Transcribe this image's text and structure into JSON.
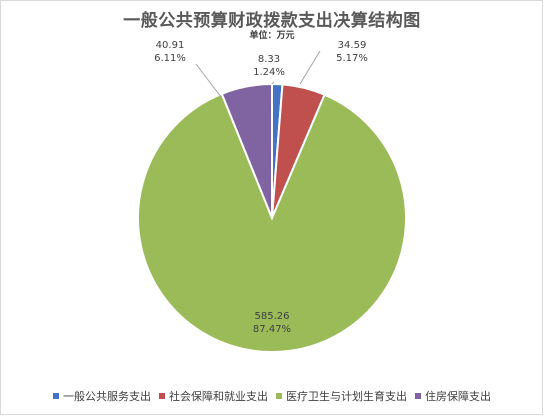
{
  "chart_data": {
    "type": "pie",
    "title": "一般公共预算财政拨款支出决算结构图",
    "subtitle": "单位：万元",
    "slices": [
      {
        "name": "一般公共服务支出",
        "value": 8.33,
        "percent": "1.24%",
        "value_label": "8.33",
        "color": "#4472C4"
      },
      {
        "name": "社会保障和就业支出",
        "value": 34.59,
        "percent": "5.17%",
        "value_label": "34.59",
        "color": "#C0504D"
      },
      {
        "name": "医疗卫生与计划生育支出",
        "value": 585.26,
        "percent": "87.47%",
        "value_label": "585.26",
        "color": "#9BBB59"
      },
      {
        "name": "住房保障支出",
        "value": 40.91,
        "percent": "6.11%",
        "value_label": "40.91",
        "color": "#8064A2"
      }
    ],
    "legend": "bottom"
  }
}
